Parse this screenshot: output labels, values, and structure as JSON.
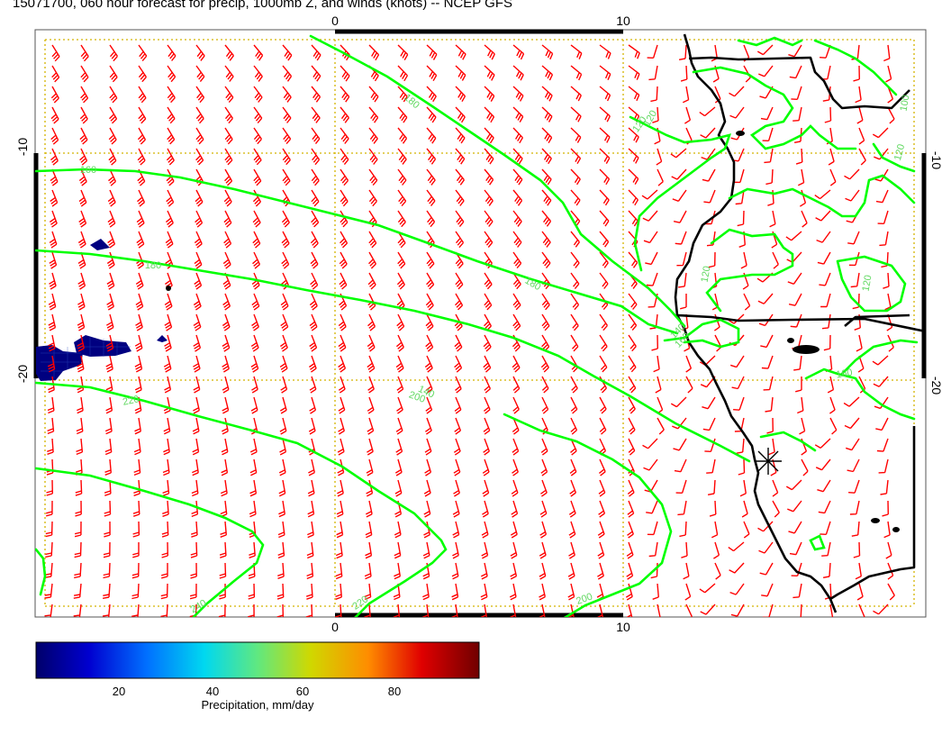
{
  "title": "15071700, 060 hour forecast for precip, 1000mb Z, and winds (knots) -- NCEP GFS",
  "axes": {
    "lon_ticks": [
      "0",
      "10"
    ],
    "lat_ticks_left": [
      "-10",
      "-20"
    ],
    "lat_ticks_right": [
      "-10",
      "-20"
    ]
  },
  "contour_labels": [
    "160",
    "180",
    "180",
    "180",
    "200",
    "220",
    "220",
    "240",
    "200",
    "140",
    "160",
    "160",
    "120",
    "120",
    "120",
    "100",
    "120",
    "120",
    "140"
  ],
  "colorbar": {
    "ticks": [
      "20",
      "40",
      "60",
      "80"
    ],
    "label": "Precipitation, mm/day",
    "range": [
      0,
      100
    ],
    "colors": [
      "#00006a",
      "#0000c8",
      "#0060ff",
      "#00c8ff",
      "#40e8c0",
      "#a0e860",
      "#e0d800",
      "#ff8000",
      "#e00000",
      "#800000"
    ]
  },
  "colors": {
    "contour": "#00ff00",
    "wind_barb": "#ff0000",
    "coast": "#000000",
    "grid": "#d4b400",
    "precip": "#000080"
  }
}
